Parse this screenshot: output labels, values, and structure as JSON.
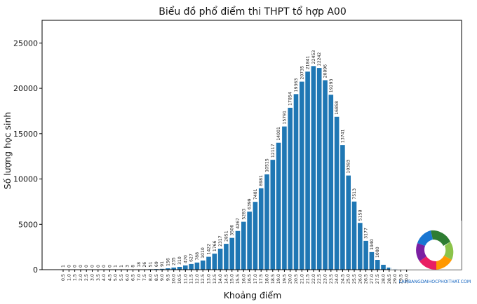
{
  "chart_data": {
    "type": "bar",
    "title": "Biểu đồ phổ điểm thi THPT tổ hợp A00",
    "xlabel": "Khoảng điểm",
    "ylabel": "Số lượng học sinh",
    "ylim": [
      0,
      27500
    ],
    "yticks": [
      "0",
      "5000",
      "10000",
      "15000",
      "20000",
      "25000"
    ],
    "grid": false,
    "categories": [
      "0.5",
      "1.0",
      "1.5",
      "2.0",
      "2.5",
      "3.0",
      "3.5",
      "4.0",
      "4.5",
      "5.0",
      "5.5",
      "6.0",
      "6.5",
      "7.0",
      "7.5",
      "8.0",
      "8.5",
      "9.0",
      "9.5",
      "10.0",
      "10.5",
      "11.0",
      "11.5",
      "12.0",
      "12.5",
      "13.0",
      "13.5",
      "14.0",
      "14.5",
      "15.0",
      "15.5",
      "16.0",
      "16.5",
      "17.0",
      "17.5",
      "18.0",
      "18.5",
      "19.0",
      "19.5",
      "20.0",
      "20.5",
      "21.0",
      "21.5",
      "22.0",
      "22.5",
      "23.0",
      "23.5",
      "24.0",
      "24.5",
      "25.0",
      "25.5",
      "26.0",
      "26.5",
      "27.0",
      "27.5",
      "28.0",
      "28.5",
      "29.0",
      "29.5",
      "30.0"
    ],
    "values": [
      1,
      0,
      0,
      0,
      0,
      0,
      0,
      0,
      0,
      1,
      1,
      3,
      8,
      18,
      26,
      51,
      69,
      91,
      156,
      235,
      310,
      470,
      627,
      788,
      1010,
      1422,
      1766,
      2317,
      2851,
      3506,
      4267,
      5283,
      6399,
      7481,
      8981,
      10515,
      12117,
      14001,
      15791,
      17854,
      19363,
      20735,
      21841,
      22453,
      22242,
      20896,
      19293,
      16858,
      13741,
      10383,
      7513,
      5158,
      3177,
      1940,
      1080,
      540,
      230,
      80,
      20,
      2
    ],
    "data_labels": [
      "1",
      "0",
      "0",
      "0",
      "0",
      "0",
      "0",
      "0",
      "0",
      "1",
      "1",
      "3",
      "8",
      "18",
      "26",
      "51",
      "69",
      "91",
      "156",
      "235",
      "310",
      "470",
      "627",
      "788",
      "1010",
      "1422",
      "1766",
      "2317",
      "2851",
      "3506",
      "4267",
      "5283",
      "6399",
      "7481",
      "8981",
      "10515",
      "12117",
      "14001",
      "15791",
      "17854",
      "19363",
      "20735",
      "21841",
      "22453",
      "22242",
      "20896",
      "19293",
      "16858",
      "13741",
      "10383",
      "7513",
      "5158",
      "3177",
      "1940",
      "1080",
      "",
      "",
      "",
      "",
      ""
    ],
    "bar_color": "#1f77b4"
  },
  "watermark": {
    "text": "LAMBANGDAIHOCPHOITHAT.COM",
    "colors": [
      "#2e7d32",
      "#8bc34a",
      "#ff9800",
      "#e91e63",
      "#7b1fa2",
      "#1976d2"
    ]
  }
}
